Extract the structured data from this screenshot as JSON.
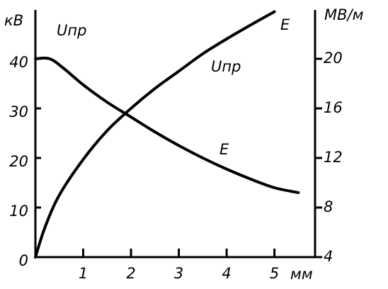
{
  "chart_data": {
    "type": "line",
    "xlabel": "мм",
    "ylabel": "кВ",
    "y2label": "МВ/м",
    "xlim": [
      0,
      5.85
    ],
    "xticks": [
      1,
      2,
      3,
      4,
      5
    ],
    "ylim": [
      0,
      50
    ],
    "yticks": [
      0,
      10,
      20,
      30,
      40
    ],
    "y2lim": [
      4,
      24
    ],
    "y2ticks": [
      4,
      8,
      12,
      16,
      20
    ],
    "series": [
      {
        "name": "Uпр",
        "color": "#000000",
        "x": [
          0,
          0.2,
          0.5,
          1,
          1.5,
          2,
          2.5,
          3,
          3.5,
          4,
          4.5,
          5
        ],
        "values": [
          0,
          6,
          12.5,
          19.7,
          25.5,
          30,
          34,
          37.5,
          41,
          44,
          46.8,
          49.5
        ]
      },
      {
        "name": "E",
        "color": "#000000",
        "axis": "y2",
        "x": [
          0,
          0.3,
          0.6,
          1,
          1.5,
          2,
          2.5,
          3,
          3.5,
          4,
          4.5,
          5,
          5.5
        ],
        "values": [
          20,
          20,
          19.2,
          17.9,
          16.5,
          15.3,
          14.1,
          13,
          12,
          11.1,
          10.3,
          9.6,
          9.2
        ]
      }
    ]
  }
}
